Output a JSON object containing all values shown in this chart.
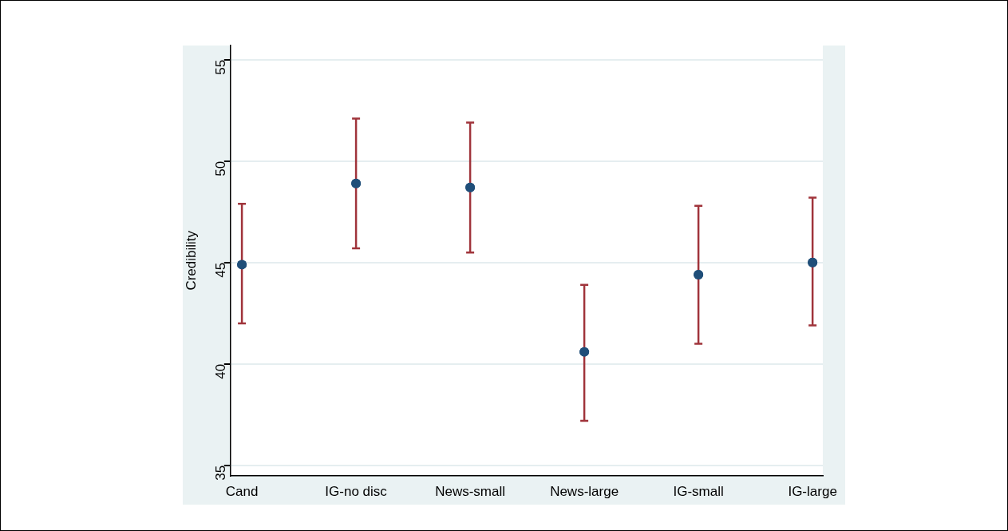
{
  "chart_data": {
    "type": "scatter",
    "ylabel": "Credibility",
    "categories": [
      "Cand",
      "IG-no disc",
      "News-small",
      "News-large",
      "IG-small",
      "IG-large"
    ],
    "series": [
      {
        "color": "#1f4e79",
        "values": [
          44.9,
          48.9,
          48.7,
          40.6,
          44.4,
          45.0
        ],
        "errors": [
          [
            42.0,
            47.9
          ],
          [
            45.7,
            52.1
          ],
          [
            45.5,
            51.9
          ],
          [
            37.2,
            43.9
          ],
          [
            41.0,
            47.8
          ],
          [
            41.9,
            48.2
          ]
        ]
      }
    ],
    "ylim": [
      34.5,
      55.7
    ],
    "yticks": [
      35,
      40,
      45,
      50,
      55
    ],
    "grid": "y",
    "marker": "circle",
    "legend": false
  }
}
